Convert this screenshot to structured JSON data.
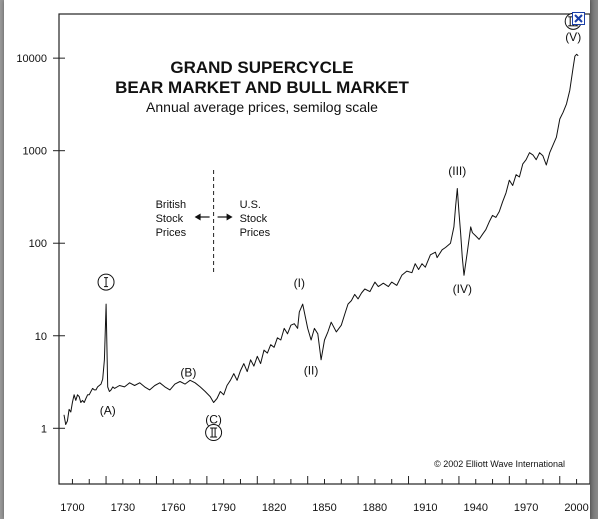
{
  "chart_data": {
    "type": "line",
    "title": "GRAND SUPERCYCLE",
    "title2": "BEAR MARKET AND BULL MARKET",
    "subtitle": "Annual average prices, semilog scale",
    "xlabel": "",
    "ylabel": "",
    "y_scale": "log",
    "xlim": [
      1692,
      2008
    ],
    "ylim": [
      0.25,
      30000
    ],
    "x_ticks": [
      1700,
      1730,
      1760,
      1790,
      1820,
      1850,
      1880,
      1910,
      1940,
      1970,
      2000
    ],
    "y_ticks": [
      1,
      10,
      100,
      1000,
      10000
    ],
    "grid": false,
    "separator": {
      "x": 1784,
      "left_text": [
        "British",
        "Stock",
        "Prices"
      ],
      "right_text": [
        "U.S.",
        "Stock",
        "Prices"
      ]
    },
    "series": [
      {
        "x": [
          1695,
          1696,
          1697,
          1698,
          1699,
          1700,
          1701,
          1702,
          1703,
          1704,
          1705,
          1706,
          1707,
          1708,
          1709,
          1710,
          1711,
          1712,
          1713,
          1714,
          1715,
          1716,
          1717,
          1718,
          1719,
          1720,
          1721,
          1722,
          1723,
          1724,
          1725,
          1728,
          1731,
          1734,
          1737,
          1740,
          1743,
          1746,
          1749,
          1752,
          1755,
          1758,
          1761,
          1764,
          1767,
          1770,
          1773,
          1776,
          1779,
          1782,
          1784,
          1786,
          1788,
          1790,
          1792,
          1794,
          1796,
          1798,
          1800,
          1802,
          1804,
          1806,
          1808,
          1810,
          1812,
          1814,
          1816,
          1818,
          1820,
          1822,
          1824,
          1826,
          1828,
          1830,
          1832,
          1834,
          1835,
          1837,
          1840,
          1842,
          1844,
          1846,
          1848,
          1850,
          1852,
          1854,
          1857,
          1860,
          1862,
          1864,
          1866,
          1868,
          1870,
          1872,
          1874,
          1877,
          1880,
          1882,
          1885,
          1888,
          1890,
          1893,
          1896,
          1899,
          1902,
          1904,
          1906,
          1908,
          1910,
          1913,
          1916,
          1917,
          1920,
          1922,
          1925,
          1927,
          1928,
          1929,
          1930,
          1931,
          1932,
          1933,
          1935,
          1937,
          1938,
          1940,
          1942,
          1944,
          1946,
          1948,
          1950,
          1952,
          1954,
          1956,
          1958,
          1960,
          1962,
          1964,
          1966,
          1968,
          1970,
          1972,
          1974,
          1976,
          1978,
          1980,
          1982,
          1984,
          1986,
          1988,
          1990,
          1992,
          1994,
          1996,
          1998,
          1999,
          2000,
          2001
        ],
        "values": [
          1.4,
          1.1,
          1.2,
          1.6,
          1.5,
          1.9,
          2.3,
          2.0,
          2.3,
          2.2,
          1.9,
          2.0,
          1.9,
          2.1,
          2.3,
          2.3,
          2.5,
          2.7,
          2.6,
          2.6,
          2.8,
          2.9,
          3.0,
          3.4,
          5.5,
          22,
          2.8,
          2.5,
          2.6,
          2.8,
          2.7,
          2.9,
          2.8,
          3.1,
          2.9,
          3.1,
          2.8,
          2.6,
          2.9,
          3.1,
          2.8,
          2.6,
          3.0,
          3.2,
          3.0,
          3.3,
          3.1,
          2.8,
          2.5,
          2.2,
          1.9,
          2.1,
          2.5,
          2.3,
          2.9,
          3.3,
          3.9,
          3.3,
          4.2,
          5.0,
          4.1,
          5.5,
          4.7,
          6.0,
          5.0,
          7.0,
          6.5,
          8.0,
          7.5,
          9.5,
          9.0,
          12,
          10.5,
          13,
          13.5,
          12,
          18,
          22,
          12,
          9.0,
          12,
          10.5,
          5.5,
          9.0,
          11,
          14,
          11,
          13,
          17,
          22,
          24,
          28,
          25,
          29,
          32,
          30,
          38,
          34,
          37,
          34,
          38,
          35,
          45,
          50,
          48,
          60,
          52,
          60,
          55,
          75,
          80,
          70,
          85,
          90,
          100,
          150,
          250,
          390,
          220,
          130,
          70,
          45,
          80,
          150,
          130,
          120,
          110,
          125,
          140,
          170,
          200,
          190,
          220,
          280,
          350,
          480,
          420,
          550,
          520,
          720,
          800,
          950,
          900,
          800,
          950,
          880,
          700,
          950,
          1150,
          1400,
          2200,
          2600,
          3200,
          4500,
          8000,
          10500,
          11000,
          10600
        ]
      }
    ],
    "wave_labels": [
      {
        "text": "(A)",
        "x": 1721,
        "y": 1.55
      },
      {
        "text": "(B)",
        "x": 1769,
        "y": 4.0
      },
      {
        "text": "(C)",
        "x": 1784,
        "y": 1.25
      },
      {
        "text": "(I)",
        "x": 1835,
        "y": 37
      },
      {
        "text": "(II)",
        "x": 1842,
        "y": 4.2
      },
      {
        "text": "(III)",
        "x": 1929,
        "y": 600
      },
      {
        "text": "(IV)",
        "x": 1932,
        "y": 32
      },
      {
        "text": "(V)",
        "x": 1998,
        "y": 17000
      }
    ],
    "circled_labels": [
      {
        "text": "I",
        "x": 1720,
        "y": 38
      },
      {
        "text": "II",
        "x": 1784,
        "y": 0.9
      },
      {
        "text": "III",
        "x": 1998,
        "y": 25000
      }
    ],
    "copyright": "© 2002 Elliott Wave International"
  }
}
